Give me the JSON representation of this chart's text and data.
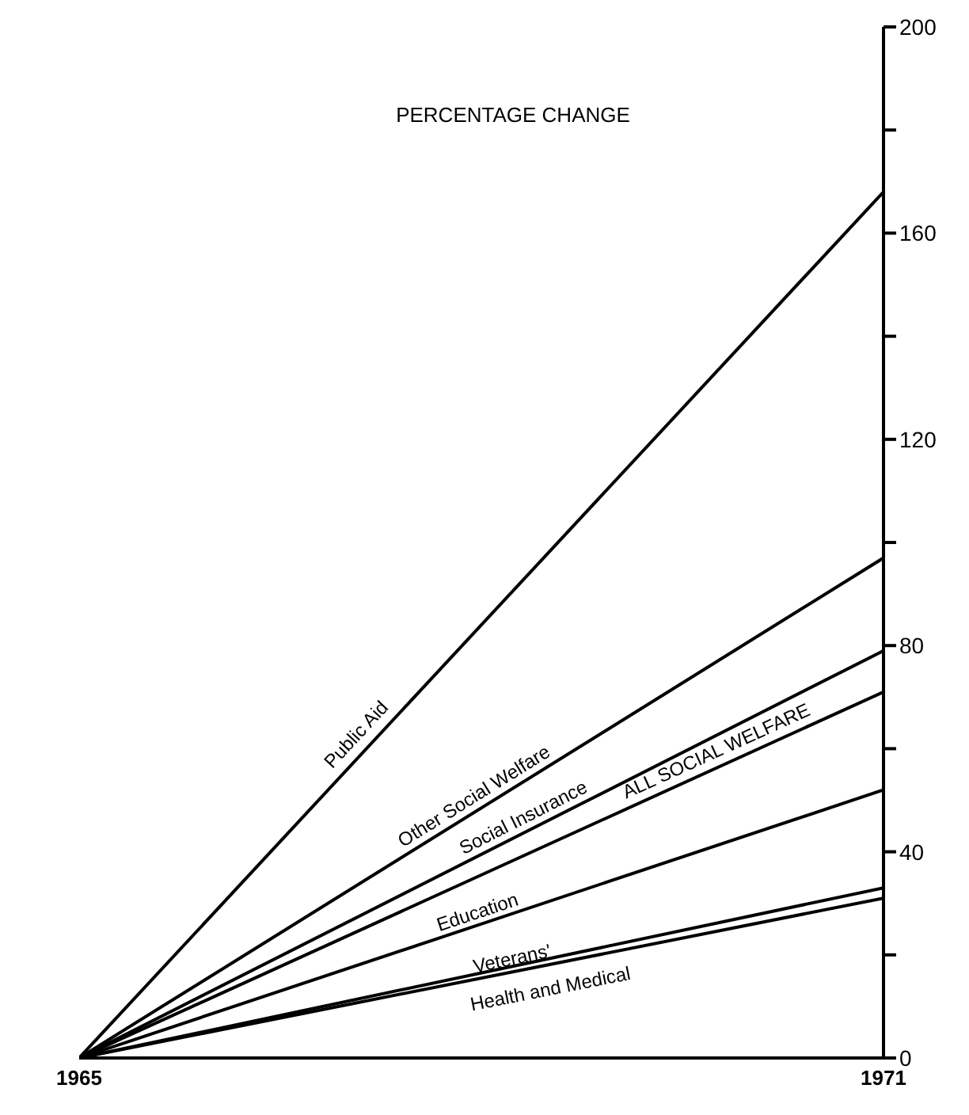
{
  "chart_data": {
    "type": "line",
    "title": "PERCENTAGE CHANGE",
    "x": [
      1965,
      1971
    ],
    "xlim": [
      1965,
      1971
    ],
    "xticks": [
      1965,
      1971
    ],
    "ylim": [
      0,
      200
    ],
    "yticks": [
      0,
      {
        "value": 20,
        "label": null
      },
      40,
      {
        "value": 60,
        "label": null
      },
      80,
      {
        "value": 100,
        "label": null
      },
      120,
      {
        "value": 140,
        "label": null
      },
      160,
      {
        "value": 180,
        "label": null
      },
      200
    ],
    "marker": "none",
    "line_style": "solid",
    "series": [
      {
        "name": "Public Aid",
        "color": "#000000",
        "values": [
          0,
          168
        ]
      },
      {
        "name": "Other Social Welfare",
        "color": "#000000",
        "values": [
          0,
          97
        ]
      },
      {
        "name": "Social Insurance",
        "color": "#000000",
        "values": [
          0,
          79
        ]
      },
      {
        "name": "ALL SOCIAL WELFARE",
        "color": "#000000",
        "values": [
          0,
          71
        ]
      },
      {
        "name": "Education",
        "color": "#000000",
        "values": [
          0,
          52
        ]
      },
      {
        "name": "Veterans'",
        "color": "#000000",
        "values": [
          0,
          33
        ]
      },
      {
        "name": "Health and Medical",
        "color": "#000000",
        "values": [
          0,
          31
        ]
      }
    ]
  }
}
